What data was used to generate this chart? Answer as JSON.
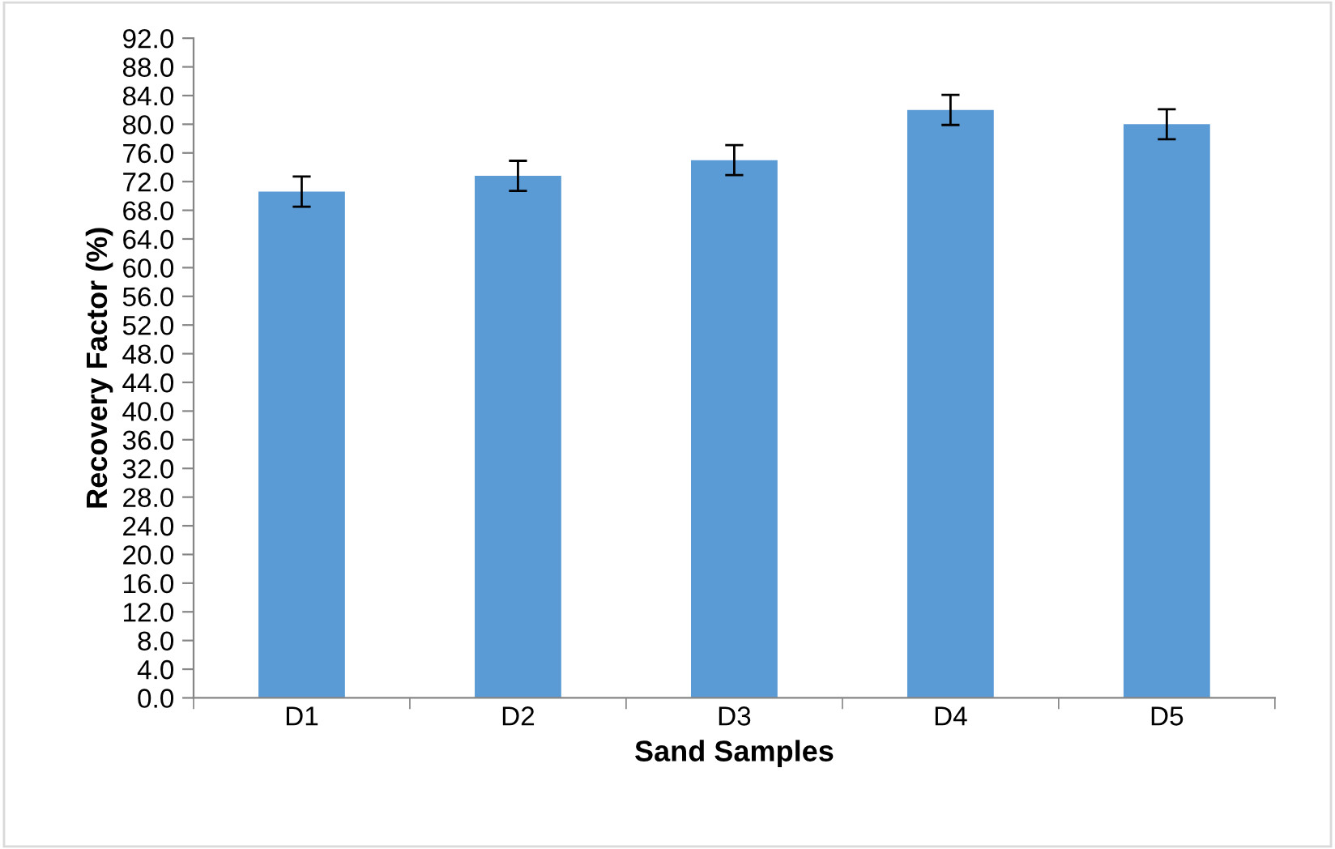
{
  "chart_data": {
    "type": "bar",
    "xlabel": "Sand Samples",
    "ylabel": "Recovery Factor (%)",
    "categories": [
      "D1",
      "D2",
      "D3",
      "D4",
      "D5"
    ],
    "values": [
      70.6,
      72.8,
      75.0,
      82.0,
      80.0
    ],
    "errors": [
      2.1,
      2.1,
      2.1,
      2.1,
      2.1
    ],
    "color": "#5b9bd5",
    "ylim": [
      0,
      92
    ],
    "yticks": [
      {
        "value": 0,
        "label": "0.0"
      },
      {
        "value": 4,
        "label": "4.0"
      },
      {
        "value": 8,
        "label": "8.0"
      },
      {
        "value": 12,
        "label": "12.0"
      },
      {
        "value": 16,
        "label": "16.0"
      },
      {
        "value": 20,
        "label": "20.0"
      },
      {
        "value": 24,
        "label": "24.0"
      },
      {
        "value": 28,
        "label": "28.0"
      },
      {
        "value": 32,
        "label": "32.0"
      },
      {
        "value": 36,
        "label": "36.0"
      },
      {
        "value": 40,
        "label": "40.0"
      },
      {
        "value": 44,
        "label": "44.0"
      },
      {
        "value": 48,
        "label": "48.0"
      },
      {
        "value": 52,
        "label": "52.0"
      },
      {
        "value": 56,
        "label": "56.0"
      },
      {
        "value": 60,
        "label": "60.0"
      },
      {
        "value": 64,
        "label": "64.0"
      },
      {
        "value": 68,
        "label": "68.0"
      },
      {
        "value": 72,
        "label": "72.0"
      },
      {
        "value": 76,
        "label": "76.0"
      },
      {
        "value": 80,
        "label": "80.0"
      },
      {
        "value": 84,
        "label": "84.0"
      },
      {
        "value": 88,
        "label": "88.0"
      },
      {
        "value": 92,
        "label": "92.0"
      }
    ],
    "grid": false,
    "legend": false
  }
}
